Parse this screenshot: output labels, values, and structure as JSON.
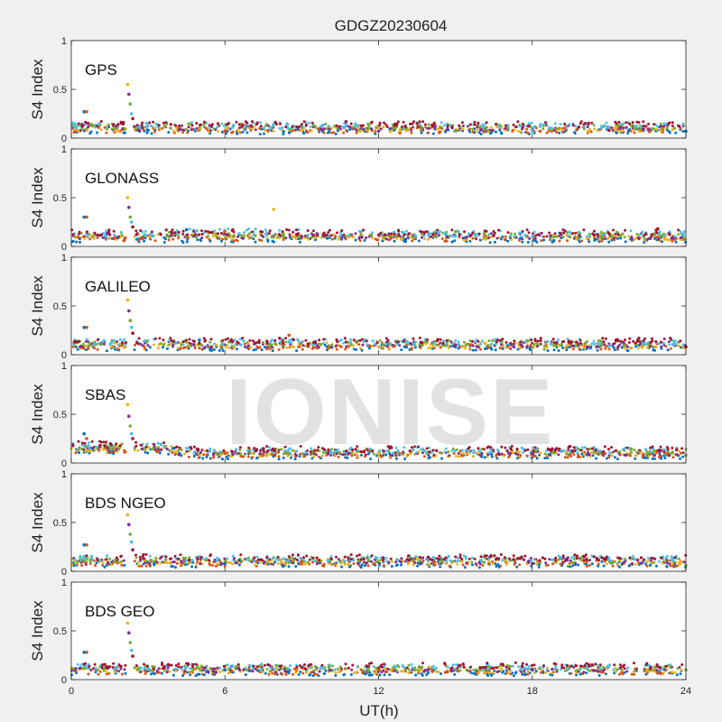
{
  "title": "GDGZ20230604",
  "watermark": "IONISE",
  "xlabel": "UT(h)",
  "colors": [
    "#0072BD",
    "#D95319",
    "#EDB120",
    "#7E2F8E",
    "#77AC30",
    "#4DBEEE",
    "#A2142F"
  ],
  "chart_data": [
    {
      "type": "scatter",
      "label": "GPS",
      "ylabel": "S4 Index",
      "xlim": [
        0,
        24
      ],
      "ylim": [
        0,
        1
      ],
      "yticks": [
        0,
        0.5,
        1
      ],
      "xticks": [
        0,
        6,
        12,
        18,
        24
      ],
      "series": [
        {
          "x": [
            0.5,
            0.6,
            2.2,
            2.25,
            2.3,
            2.35,
            2.4,
            3,
            6,
            9,
            12,
            15,
            18,
            21,
            24
          ],
          "y": [
            0.27,
            0.27,
            0.55,
            0.45,
            0.35,
            0.25,
            0.2,
            0.08,
            0.07,
            0.08,
            0.07,
            0.08,
            0.07,
            0.08,
            0.07
          ]
        }
      ]
    },
    {
      "type": "scatter",
      "label": "GLONASS",
      "ylabel": "S4 Index",
      "xlim": [
        0,
        24
      ],
      "ylim": [
        0,
        1
      ],
      "yticks": [
        0,
        0.5,
        1
      ],
      "xticks": [
        0,
        6,
        12,
        18,
        24
      ],
      "series": [
        {
          "x": [
            0.5,
            0.6,
            2.2,
            2.25,
            2.3,
            2.35,
            2.4,
            4.5,
            6,
            7.9,
            9,
            15,
            18,
            22.9
          ],
          "y": [
            0.3,
            0.3,
            0.5,
            0.4,
            0.3,
            0.25,
            0.2,
            0.17,
            0.15,
            0.38,
            0.1,
            0.15,
            0.1,
            0.18
          ]
        }
      ]
    },
    {
      "type": "scatter",
      "label": "GALILEO",
      "ylabel": "S4 Index",
      "xlim": [
        0,
        24
      ],
      "ylim": [
        0,
        1
      ],
      "yticks": [
        0,
        0.5,
        1
      ],
      "xticks": [
        0,
        6,
        12,
        18,
        24
      ],
      "series": [
        {
          "x": [
            0.5,
            0.6,
            2.2,
            2.25,
            2.3,
            2.35,
            2.4,
            5,
            8.5,
            12,
            15,
            18,
            21,
            24
          ],
          "y": [
            0.28,
            0.28,
            0.56,
            0.45,
            0.35,
            0.28,
            0.22,
            0.15,
            0.2,
            0.08,
            0.1,
            0.07,
            0.09,
            0.08
          ]
        }
      ]
    },
    {
      "type": "scatter",
      "label": "SBAS",
      "ylabel": "S4 Index",
      "xlim": [
        0,
        24
      ],
      "ylim": [
        0,
        1
      ],
      "yticks": [
        0,
        0.5,
        1
      ],
      "xticks": [
        0,
        6,
        12,
        18,
        24
      ],
      "series": [
        {
          "x": [
            0.5,
            0.6,
            2.2,
            2.25,
            2.3,
            2.35,
            2.4,
            4,
            6,
            12,
            18,
            24
          ],
          "y": [
            0.3,
            0.25,
            0.6,
            0.48,
            0.38,
            0.3,
            0.25,
            0.15,
            0.1,
            0.1,
            0.1,
            0.08
          ]
        }
      ]
    },
    {
      "type": "scatter",
      "label": "BDS NGEO",
      "ylabel": "S4 Index",
      "xlim": [
        0,
        24
      ],
      "ylim": [
        0,
        1
      ],
      "yticks": [
        0,
        0.5,
        1
      ],
      "xticks": [
        0,
        6,
        12,
        18,
        24
      ],
      "series": [
        {
          "x": [
            0.5,
            0.6,
            2.2,
            2.25,
            2.3,
            2.35,
            2.4,
            6,
            9,
            13.5,
            18,
            24
          ],
          "y": [
            0.27,
            0.27,
            0.58,
            0.48,
            0.38,
            0.3,
            0.22,
            0.08,
            0.1,
            0.13,
            0.08,
            0.06
          ]
        }
      ]
    },
    {
      "type": "scatter",
      "label": "BDS GEO",
      "ylabel": "S4 Index",
      "xlim": [
        0,
        24
      ],
      "ylim": [
        0,
        1
      ],
      "yticks": [
        0,
        0.5,
        1
      ],
      "xticks": [
        0,
        6,
        12,
        18,
        24
      ],
      "series": [
        {
          "x": [
            0.5,
            0.6,
            2.2,
            2.25,
            2.3,
            2.35,
            2.4,
            6,
            12,
            14,
            18,
            24
          ],
          "y": [
            0.28,
            0.28,
            0.58,
            0.48,
            0.38,
            0.3,
            0.24,
            0.1,
            0.1,
            0.13,
            0.1,
            0.1
          ]
        }
      ]
    }
  ]
}
